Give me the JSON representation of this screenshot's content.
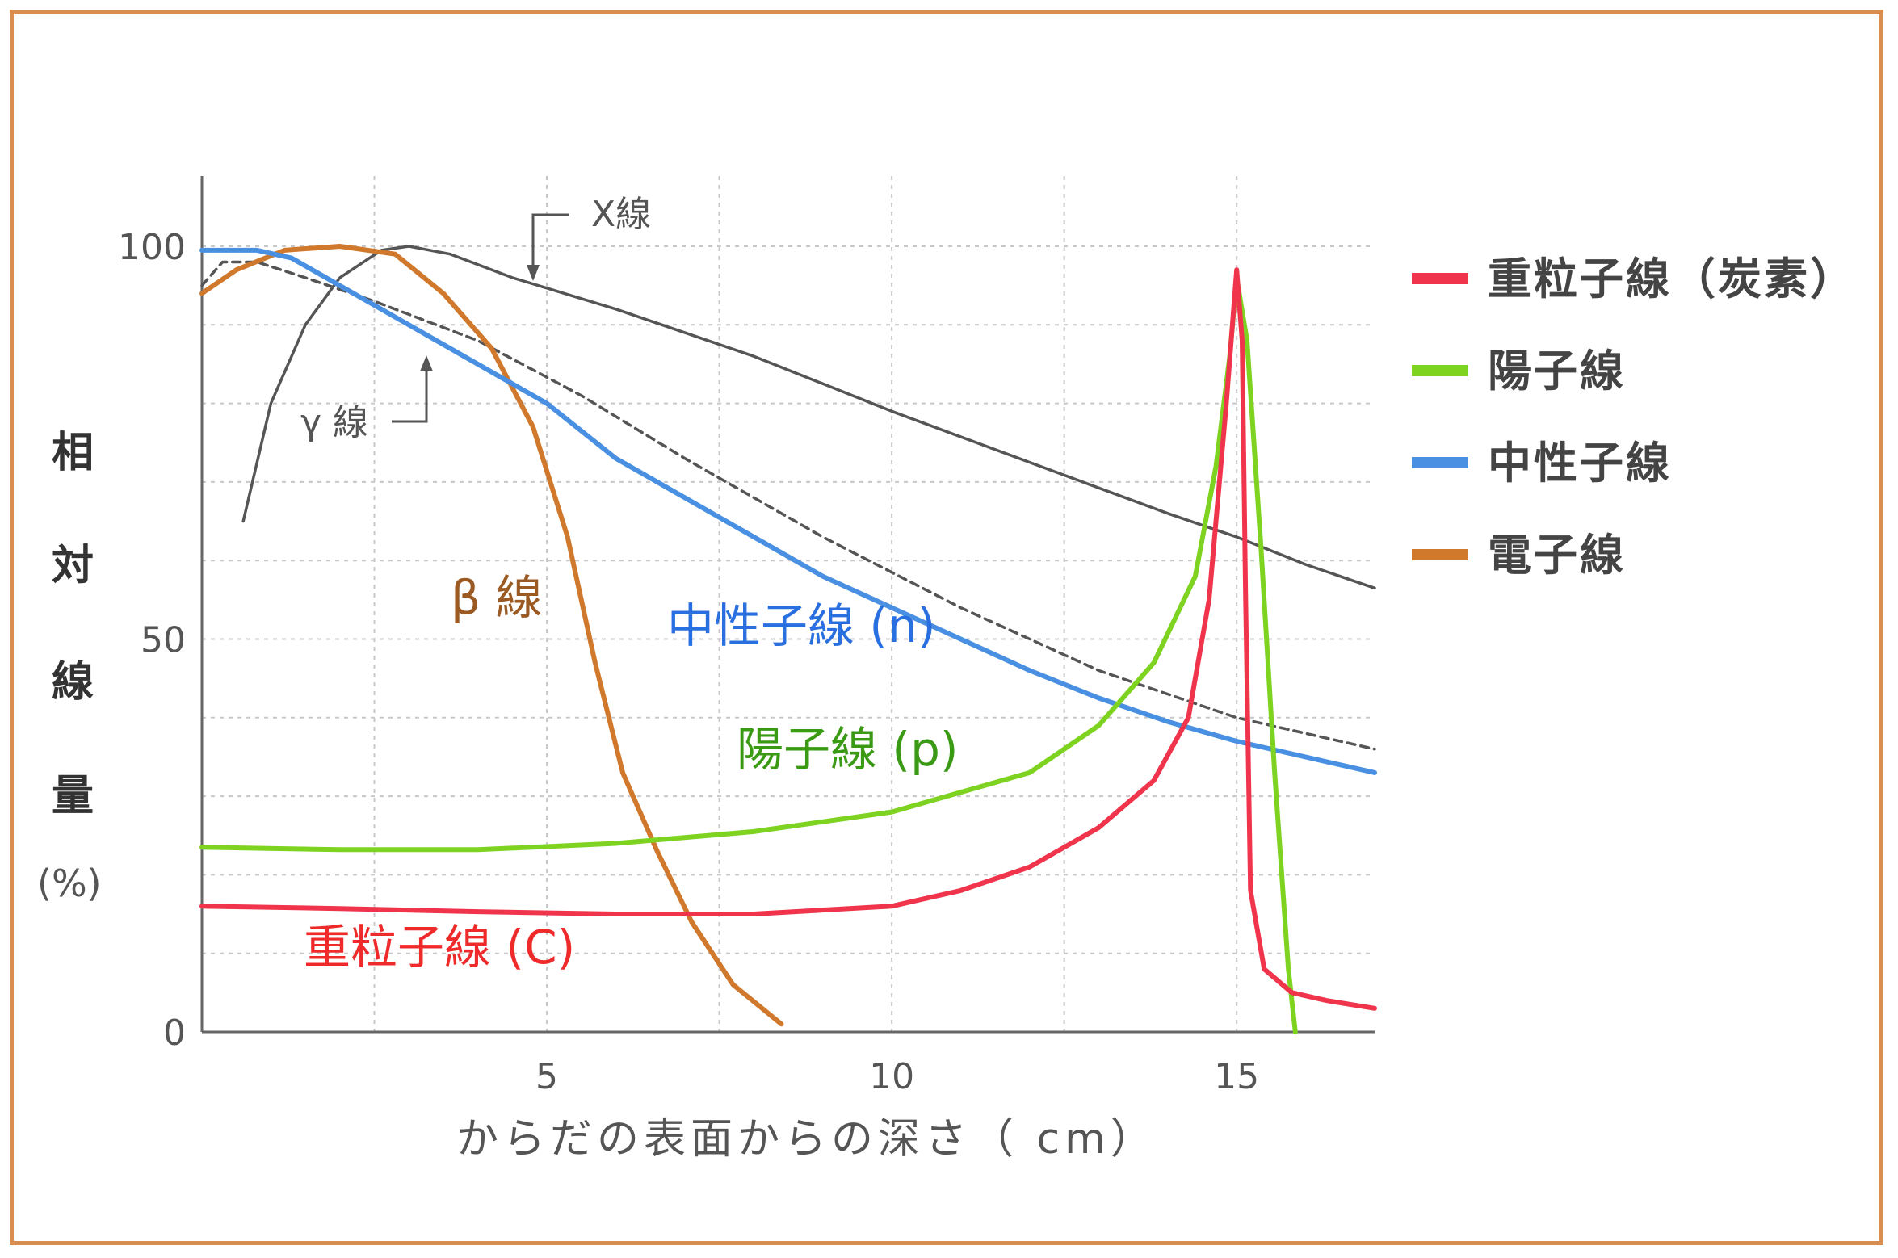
{
  "chart_data": {
    "type": "line",
    "xlabel": "からだの表面からの深さ（ cm）",
    "ylabel_chars": [
      "相",
      "対",
      "線",
      "量",
      "(%)"
    ],
    "xlim": [
      0,
      17
    ],
    "ylim": [
      0,
      100
    ],
    "x_ticks": [
      5,
      10,
      15
    ],
    "y_ticks": [
      0,
      50,
      100
    ],
    "grid": true,
    "legend_position": "right",
    "legend": [
      {
        "name": "重粒子線（炭素）",
        "color": "#f0344c"
      },
      {
        "name": "陽子線",
        "color": "#7ed321"
      },
      {
        "name": "中性子線",
        "color": "#4a90e2"
      },
      {
        "name": "電子線",
        "color": "#d0782c"
      }
    ],
    "series": [
      {
        "name": "X線",
        "color": "#555555",
        "style": "solid",
        "points": [
          [
            0.6,
            65
          ],
          [
            1.0,
            80
          ],
          [
            1.5,
            90
          ],
          [
            2.0,
            96
          ],
          [
            2.6,
            99.5
          ],
          [
            3.0,
            100
          ],
          [
            3.6,
            99
          ],
          [
            4.5,
            96
          ],
          [
            6,
            92
          ],
          [
            8,
            86
          ],
          [
            10,
            79
          ],
          [
            12,
            72.5
          ],
          [
            14,
            66
          ],
          [
            15,
            63
          ],
          [
            16,
            59.5
          ],
          [
            17,
            56.5
          ]
        ]
      },
      {
        "name": "γ線",
        "color": "#555555",
        "style": "dashed",
        "points": [
          [
            0,
            95
          ],
          [
            0.3,
            98
          ],
          [
            0.8,
            98
          ],
          [
            1.5,
            96
          ],
          [
            2.5,
            93
          ],
          [
            4,
            88
          ],
          [
            5.5,
            81
          ],
          [
            7,
            73
          ],
          [
            9,
            63
          ],
          [
            11,
            54
          ],
          [
            13,
            46
          ],
          [
            15,
            40
          ],
          [
            17,
            36
          ]
        ]
      },
      {
        "name": "β線",
        "color": "#d0782c",
        "style": "solid",
        "points": [
          [
            0,
            94
          ],
          [
            0.5,
            97
          ],
          [
            1.2,
            99.5
          ],
          [
            2,
            100
          ],
          [
            2.8,
            99
          ],
          [
            3.5,
            94
          ],
          [
            4.2,
            87
          ],
          [
            4.8,
            77
          ],
          [
            5.3,
            63
          ],
          [
            5.7,
            47
          ],
          [
            6.1,
            33
          ],
          [
            6.6,
            23
          ],
          [
            7.1,
            14
          ],
          [
            7.7,
            6
          ],
          [
            8.4,
            1
          ]
        ]
      },
      {
        "name": "中性子線",
        "color": "#4a90e2",
        "style": "solid",
        "points": [
          [
            0,
            99.5
          ],
          [
            0.8,
            99.5
          ],
          [
            1.3,
            98.5
          ],
          [
            2,
            95
          ],
          [
            3,
            90
          ],
          [
            4,
            85
          ],
          [
            5,
            80
          ],
          [
            6,
            73
          ],
          [
            7,
            68
          ],
          [
            8,
            63
          ],
          [
            9,
            58
          ],
          [
            10,
            54
          ],
          [
            11,
            50
          ],
          [
            12,
            46
          ],
          [
            13,
            42.5
          ],
          [
            14,
            39.5
          ],
          [
            15,
            37
          ],
          [
            16,
            35
          ],
          [
            17,
            33
          ]
        ]
      },
      {
        "name": "陽子線",
        "color": "#7ed321",
        "style": "solid",
        "points": [
          [
            0,
            23.5
          ],
          [
            2,
            23.2
          ],
          [
            4,
            23.2
          ],
          [
            6,
            24
          ],
          [
            8,
            25.5
          ],
          [
            10,
            28
          ],
          [
            12,
            33
          ],
          [
            13,
            39
          ],
          [
            13.8,
            47
          ],
          [
            14.4,
            58
          ],
          [
            14.7,
            72
          ],
          [
            14.9,
            86
          ],
          [
            15.0,
            96
          ],
          [
            15.15,
            88
          ],
          [
            15.35,
            62
          ],
          [
            15.55,
            33
          ],
          [
            15.75,
            8
          ],
          [
            15.85,
            0
          ]
        ]
      },
      {
        "name": "重粒子線 (C)",
        "color": "#f0344c",
        "style": "solid",
        "points": [
          [
            0,
            16
          ],
          [
            2,
            15.7
          ],
          [
            4,
            15.3
          ],
          [
            6,
            15
          ],
          [
            8,
            15
          ],
          [
            10,
            16
          ],
          [
            11,
            18
          ],
          [
            12,
            21
          ],
          [
            13,
            26
          ],
          [
            13.8,
            32
          ],
          [
            14.3,
            40
          ],
          [
            14.6,
            55
          ],
          [
            14.85,
            80
          ],
          [
            15.0,
            97
          ],
          [
            15.08,
            88
          ],
          [
            15.13,
            55
          ],
          [
            15.2,
            18
          ],
          [
            15.4,
            8
          ],
          [
            15.8,
            5
          ],
          [
            16.3,
            4
          ],
          [
            17,
            3
          ]
        ]
      }
    ],
    "annotations": [
      {
        "text": "X線"
      },
      {
        "text": "γ 線"
      }
    ],
    "series_labels": [
      {
        "text": "β 線",
        "color": "#9b5a22"
      },
      {
        "text": "中性子線 (n)",
        "color": "#2a6fe0"
      },
      {
        "text": "陽子線 (p)",
        "color": "#3a9a14"
      },
      {
        "text": "重粒子線 (C)",
        "color": "#ee2a2a"
      }
    ]
  }
}
